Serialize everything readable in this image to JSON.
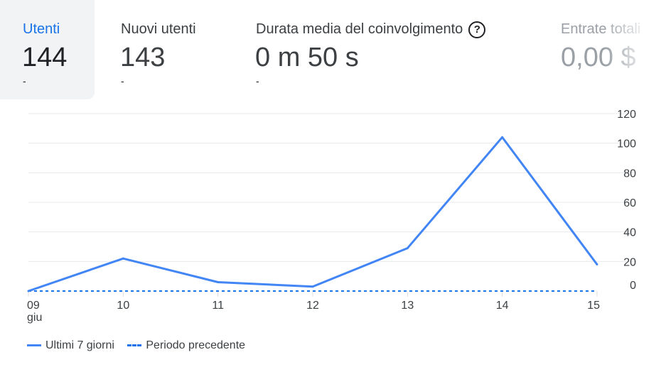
{
  "metrics": [
    {
      "label": "Utenti",
      "value": "144",
      "change": "-",
      "active": true
    },
    {
      "label": "Nuovi utenti",
      "value": "143",
      "change": "-",
      "active": false
    },
    {
      "label": "Durata media del coinvolgimento",
      "value": "0 m 50 s",
      "change": "-",
      "active": false,
      "icon": "help-icon"
    },
    {
      "label": "Entrate totali",
      "value": "0,00 $",
      "active": false
    }
  ],
  "legend": {
    "current": "Ultimi 7 giorni",
    "previous": "Periodo precedente"
  },
  "colors": {
    "accent": "#1a73e8",
    "line": "#4285f4",
    "grid": "#e8eaed"
  },
  "chart_data": {
    "type": "line",
    "categories": [
      "09",
      "10",
      "11",
      "12",
      "13",
      "14",
      "15"
    ],
    "x_sublabel": "giu",
    "series": [
      {
        "name": "Ultimi 7 giorni",
        "values": [
          0,
          22,
          6,
          3,
          29,
          104,
          18
        ],
        "style": "solid"
      },
      {
        "name": "Periodo precedente",
        "values": [
          0,
          0,
          0,
          0,
          0,
          0,
          0
        ],
        "style": "dashed"
      }
    ],
    "yticks": [
      0,
      20,
      40,
      60,
      80,
      100,
      120
    ],
    "ylim": [
      0,
      120
    ],
    "grid": true,
    "legend_position": "bottom-left"
  }
}
